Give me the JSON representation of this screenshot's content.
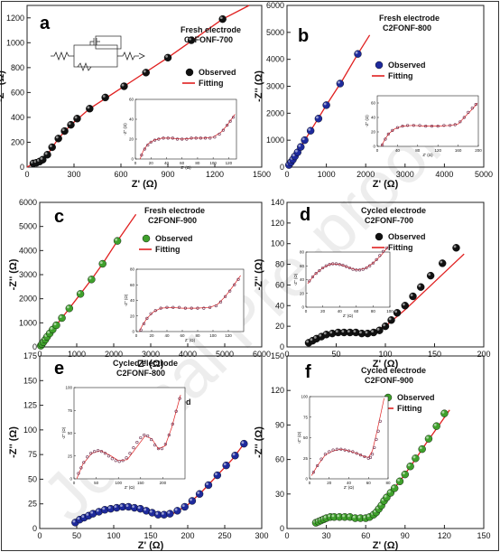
{
  "watermark": "Journal Pre-proofs",
  "legend": {
    "observed": "Observed",
    "fitting": "Fitting"
  },
  "chart_data": [
    {
      "letter": "a",
      "title1": "Fresh electrode",
      "title2": "C2FONF-700",
      "type": "scatter",
      "xlabel": "Z' (Ω)",
      "ylabel": "-Z'' (Ω)",
      "xlim": [
        0,
        1500
      ],
      "ylim": [
        0,
        1300
      ],
      "xticks": [
        0,
        300,
        600,
        900,
        1200,
        1500
      ],
      "yticks": [
        0,
        200,
        400,
        600,
        800,
        1000,
        1200
      ],
      "marker_color": "#111111",
      "circuit": true,
      "x": [
        40,
        60,
        80,
        100,
        130,
        160,
        200,
        240,
        280,
        320,
        400,
        500,
        620,
        760,
        900,
        1050,
        1250
      ],
      "y": [
        30,
        35,
        45,
        60,
        100,
        160,
        230,
        290,
        340,
        390,
        470,
        560,
        650,
        760,
        880,
        1020,
        1190
      ],
      "fit_x": [
        0,
        40,
        80,
        130,
        200,
        280,
        400,
        620,
        900,
        1250,
        1420
      ],
      "fit_y": [
        0,
        30,
        45,
        100,
        230,
        340,
        470,
        650,
        880,
        1190,
        1300
      ],
      "inset": {
        "xlim": [
          0,
          130
        ],
        "ylim": [
          0,
          60
        ],
        "xticks": [
          0,
          20,
          40,
          60,
          80,
          100,
          120
        ],
        "yticks": [
          0,
          20,
          40,
          60
        ],
        "xlabel": "Z' (Ω)",
        "ylabel": "-Z'' (Ω)",
        "x": [
          8,
          12,
          16,
          20,
          25,
          30,
          36,
          42,
          48,
          54,
          60,
          66,
          72,
          78,
          84,
          90,
          96,
          102,
          108,
          113,
          118,
          122,
          126
        ],
        "y": [
          4,
          10,
          14,
          17,
          19,
          20,
          21,
          21,
          21,
          20,
          20,
          20,
          21,
          21,
          21,
          21,
          21,
          22,
          25,
          29,
          34,
          38,
          42
        ],
        "fit_x": [
          6,
          10,
          16,
          24,
          34,
          46,
          60,
          74,
          88,
          100,
          110,
          118,
          128
        ],
        "fit_y": [
          0,
          8,
          15,
          19,
          21,
          21,
          20,
          21,
          21,
          22,
          27,
          34,
          45
        ]
      }
    },
    {
      "letter": "b",
      "title1": "Fresh electrode",
      "title2": "C2FONF-800",
      "type": "scatter",
      "xlabel": "Z' (Ω)",
      "ylabel": "-Z'' (Ω)",
      "xlim": [
        0,
        5000
      ],
      "ylim": [
        0,
        6000
      ],
      "xticks": [
        0,
        1000,
        2000,
        3000,
        4000,
        5000
      ],
      "yticks": [
        0,
        1000,
        2000,
        3000,
        4000,
        5000,
        6000
      ],
      "marker_color": "#1e2a9c",
      "circuit": false,
      "x": [
        50,
        100,
        150,
        200,
        270,
        350,
        450,
        600,
        800,
        1000,
        1350,
        1800
      ],
      "y": [
        80,
        180,
        280,
        400,
        550,
        750,
        1000,
        1350,
        1800,
        2300,
        3100,
        4200
      ],
      "fit_x": [
        0,
        100,
        200,
        350,
        600,
        1000,
        1400,
        1800,
        2100
      ],
      "fit_y": [
        0,
        180,
        400,
        750,
        1350,
        2300,
        3200,
        4200,
        4900
      ],
      "inset": {
        "xlim": [
          0,
          200
        ],
        "ylim": [
          0,
          70
        ],
        "xticks": [
          0,
          40,
          80,
          120,
          160,
          200
        ],
        "yticks": [
          0,
          20,
          40,
          60
        ],
        "xlabel": "Z' (Ω)",
        "ylabel": "-Z'' (Ω)",
        "x": [
          10,
          16,
          22,
          30,
          40,
          50,
          60,
          72,
          84,
          96,
          108,
          120,
          132,
          144,
          154,
          164,
          172,
          180,
          188,
          195
        ],
        "y": [
          2,
          10,
          17,
          22,
          26,
          28,
          29,
          29,
          29,
          28,
          28,
          28,
          29,
          29,
          30,
          34,
          40,
          47,
          53,
          58
        ],
        "fit_x": [
          8,
          14,
          22,
          34,
          50,
          70,
          95,
          120,
          145,
          160,
          175,
          190,
          198
        ],
        "fit_y": [
          0,
          8,
          17,
          24,
          28,
          29,
          28,
          28,
          29,
          31,
          42,
          53,
          60
        ]
      }
    },
    {
      "letter": "c",
      "title1": "Fresh electrode",
      "title2": "C2FONF-900",
      "type": "scatter",
      "xlabel": "Z' (Ω)",
      "ylabel": "-Z'' (Ω)",
      "xlim": [
        0,
        6000
      ],
      "ylim": [
        0,
        6000
      ],
      "xticks": [
        0,
        1000,
        2000,
        3000,
        4000,
        5000,
        6000
      ],
      "yticks": [
        0,
        1000,
        2000,
        3000,
        4000,
        5000,
        6000
      ],
      "marker_color": "#3fa02c",
      "circuit": false,
      "x": [
        30,
        60,
        100,
        150,
        200,
        270,
        350,
        450,
        600,
        800,
        1100,
        1400,
        1700,
        2100
      ],
      "y": [
        50,
        120,
        200,
        300,
        420,
        560,
        720,
        900,
        1200,
        1600,
        2200,
        2800,
        3450,
        4400
      ],
      "fit_x": [
        0,
        100,
        200,
        350,
        600,
        1000,
        1400,
        1700,
        2100,
        2600
      ],
      "fit_y": [
        0,
        200,
        420,
        720,
        1200,
        2000,
        2800,
        3450,
        4400,
        5500
      ],
      "inset": {
        "xlim": [
          0,
          140
        ],
        "ylim": [
          0,
          80
        ],
        "xticks": [
          0,
          20,
          40,
          60,
          80,
          100,
          120
        ],
        "yticks": [
          0,
          20,
          40,
          60,
          80
        ],
        "xlabel": "Z' (Ω)",
        "ylabel": "-Z'' (Ω)",
        "x": [
          6,
          10,
          14,
          19,
          25,
          32,
          40,
          48,
          56,
          64,
          72,
          80,
          88,
          96,
          104,
          110,
          116,
          122,
          128,
          133
        ],
        "y": [
          2,
          10,
          17,
          23,
          27,
          30,
          31,
          31,
          31,
          30,
          30,
          30,
          30,
          31,
          33,
          38,
          45,
          52,
          60,
          67
        ],
        "fit_x": [
          4,
          8,
          14,
          22,
          32,
          45,
          60,
          78,
          96,
          106,
          116,
          126,
          136
        ],
        "fit_y": [
          0,
          8,
          17,
          25,
          30,
          31,
          30,
          30,
          31,
          35,
          45,
          58,
          72
        ]
      }
    },
    {
      "letter": "d",
      "title1": "Cycled electrode",
      "title2": "C2FONF-700",
      "type": "scatter",
      "xlabel": "Z' (Ω)",
      "ylabel": "-Z'' (Ω)",
      "xlim": [
        0,
        200
      ],
      "ylim": [
        0,
        140
      ],
      "xticks": [
        0,
        50,
        100,
        150,
        200
      ],
      "yticks": [
        0,
        20,
        40,
        60,
        80,
        100,
        120,
        140
      ],
      "marker_color": "#111111",
      "circuit": false,
      "x": [
        22,
        26,
        30,
        35,
        40,
        46,
        52,
        58,
        64,
        70,
        76,
        82,
        88,
        94,
        100,
        106,
        112,
        120,
        128,
        136,
        146,
        158,
        172
      ],
      "y": [
        4,
        6,
        8,
        10,
        12,
        13,
        14,
        14,
        14,
        14,
        13,
        13,
        14,
        16,
        20,
        26,
        33,
        40,
        49,
        58,
        69,
        81,
        96
      ],
      "fit_x": [
        20,
        30,
        40,
        55,
        70,
        85,
        100,
        120,
        140,
        160,
        180
      ],
      "fit_y": [
        2,
        8,
        12,
        14,
        13,
        14,
        20,
        36,
        54,
        72,
        90
      ],
      "inset": {
        "xlim": [
          0,
          100
        ],
        "ylim": [
          0,
          80
        ],
        "xticks": [
          0,
          20,
          40,
          60,
          80,
          100
        ],
        "yticks": [
          0,
          20,
          40,
          60,
          80
        ],
        "xlabel": "Z' (Ω)",
        "ylabel": "-Z'' (Ω)",
        "x": [
          4,
          8,
          12,
          16,
          20,
          24,
          28,
          32,
          36,
          40,
          44,
          48,
          52,
          56,
          60,
          64,
          68,
          72,
          76,
          80,
          84,
          88,
          92,
          96
        ],
        "y": [
          38,
          44,
          49,
          53,
          57,
          60,
          62,
          63,
          63,
          62,
          61,
          59,
          57,
          55,
          54,
          54,
          55,
          57,
          60,
          64,
          69,
          75,
          81,
          86
        ],
        "fit_x": [
          2,
          10,
          20,
          30,
          40,
          50,
          60,
          70,
          80,
          90,
          98
        ],
        "fit_y": [
          34,
          47,
          57,
          63,
          62,
          58,
          54,
          56,
          64,
          76,
          88
        ]
      }
    },
    {
      "letter": "e",
      "title1": "Cycled electrode",
      "title2": "C2FONF-800",
      "type": "scatter",
      "xlabel": "Z' (Ω)",
      "ylabel": "-Z'' (Ω)",
      "xlim": [
        0,
        300
      ],
      "ylim": [
        0,
        175
      ],
      "xticks": [
        0,
        50,
        100,
        150,
        200,
        250,
        300
      ],
      "yticks": [
        0,
        25,
        50,
        75,
        100,
        125,
        150,
        175
      ],
      "marker_color": "#1e2a9c",
      "circuit": false,
      "x": [
        48,
        54,
        60,
        66,
        72,
        80,
        88,
        96,
        104,
        112,
        120,
        128,
        136,
        144,
        152,
        160,
        168,
        176,
        186,
        196,
        206,
        216,
        228,
        240,
        252,
        264,
        276
      ],
      "y": [
        6,
        9,
        11,
        13,
        15,
        17,
        19,
        20,
        21,
        22,
        22,
        21,
        20,
        18,
        16,
        14,
        14,
        15,
        18,
        22,
        28,
        35,
        44,
        54,
        64,
        74,
        86
      ],
      "fit_x": [
        45,
        60,
        80,
        100,
        120,
        140,
        160,
        180,
        200,
        220,
        240,
        260,
        278
      ],
      "fit_y": [
        4,
        11,
        17,
        21,
        22,
        19,
        14,
        15,
        24,
        38,
        54,
        70,
        88
      ],
      "inset": {
        "xlim": [
          0,
          250
        ],
        "ylim": [
          0,
          100
        ],
        "xticks": [
          0,
          50,
          100,
          150,
          200
        ],
        "yticks": [
          0,
          25,
          50,
          75,
          100
        ],
        "xlabel": "Z' (Ω)",
        "ylabel": "-Z'' (Ω)",
        "x": [
          10,
          16,
          22,
          30,
          38,
          46,
          54,
          62,
          70,
          78,
          86,
          94,
          102,
          110,
          118,
          126,
          134,
          142,
          150,
          158,
          166,
          174,
          182,
          190,
          198,
          206,
          214,
          222,
          230,
          238
        ],
        "y": [
          6,
          12,
          18,
          24,
          28,
          30,
          31,
          30,
          28,
          25,
          22,
          20,
          19,
          20,
          23,
          28,
          34,
          40,
          45,
          48,
          47,
          43,
          37,
          33,
          33,
          38,
          48,
          60,
          74,
          88
        ],
        "fit_x": [
          6,
          20,
          40,
          60,
          80,
          100,
          120,
          140,
          160,
          175,
          190,
          205,
          220,
          240
        ],
        "fit_y": [
          0,
          16,
          28,
          31,
          26,
          20,
          21,
          34,
          47,
          44,
          33,
          36,
          56,
          92
        ]
      }
    },
    {
      "letter": "f",
      "title1": "Cycled electrode",
      "title2": "C2FONF-900",
      "type": "scatter",
      "xlabel": "Z' (Ω)",
      "ylabel": "-Z'' (Ω)",
      "xlim": [
        0,
        150
      ],
      "ylim": [
        0,
        150
      ],
      "xticks": [
        0,
        30,
        60,
        90,
        120,
        150
      ],
      "yticks": [
        0,
        30,
        60,
        90,
        120,
        150
      ],
      "marker_color": "#3fa02c",
      "circuit": false,
      "x": [
        22,
        24,
        26,
        28,
        30,
        33,
        36,
        40,
        44,
        48,
        52,
        56,
        60,
        63,
        66,
        68,
        70,
        72,
        74,
        76,
        79,
        82,
        86,
        90,
        94,
        98,
        103,
        108,
        114,
        120
      ],
      "y": [
        5,
        6,
        7,
        8,
        9,
        10,
        10,
        10,
        10,
        10,
        9,
        9,
        9,
        10,
        12,
        14,
        17,
        20,
        24,
        27,
        31,
        35,
        41,
        47,
        54,
        61,
        69,
        78,
        89,
        100
      ],
      "fit_x": [
        20,
        30,
        40,
        50,
        60,
        64,
        68,
        72,
        78,
        86,
        96,
        106,
        116,
        124
      ],
      "fit_y": [
        3,
        9,
        10,
        10,
        9,
        10,
        14,
        20,
        30,
        41,
        57,
        74,
        90,
        103
      ],
      "inset": {
        "xlim": [
          0,
          80
        ],
        "ylim": [
          0,
          100
        ],
        "xticks": [
          0,
          20,
          40,
          60,
          80
        ],
        "yticks": [
          0,
          25,
          50,
          75,
          100
        ],
        "xlabel": "Z' (Ω)",
        "ylabel": "-Z'' (Ω)",
        "x": [
          4,
          8,
          12,
          16,
          20,
          24,
          28,
          32,
          36,
          40,
          44,
          48,
          52,
          56,
          60,
          62,
          64,
          66,
          68,
          70,
          72
        ],
        "y": [
          8,
          16,
          24,
          30,
          33,
          35,
          36,
          36,
          35,
          34,
          33,
          31,
          29,
          27,
          25,
          26,
          30,
          38,
          48,
          58,
          70
        ],
        "fit_x": [
          2,
          8,
          16,
          24,
          32,
          40,
          48,
          56,
          60,
          64,
          68,
          72,
          76
        ],
        "fit_y": [
          4,
          16,
          29,
          34,
          36,
          34,
          31,
          27,
          26,
          34,
          54,
          76,
          98
        ]
      }
    }
  ]
}
